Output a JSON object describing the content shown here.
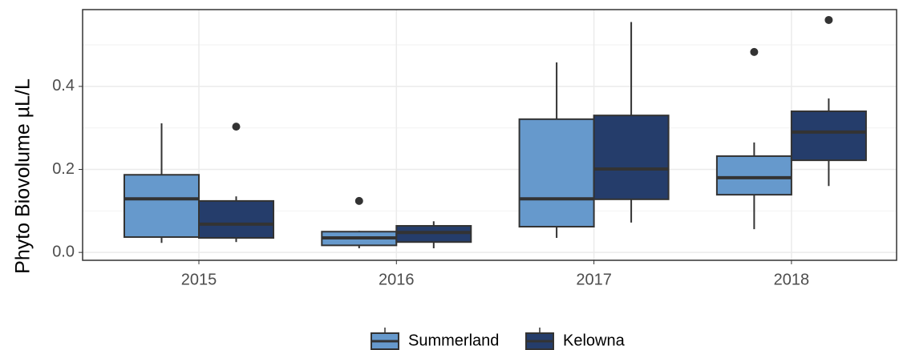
{
  "chart_data": {
    "type": "boxplot",
    "y_label": "Phyto Biovolume   µL/L",
    "categories": [
      "2015",
      "2016",
      "2017",
      "2018"
    ],
    "ylim": [
      -0.019,
      0.585
    ],
    "yticks": [
      {
        "value": 0,
        "label": "0.0"
      },
      0.2,
      0.4
    ],
    "y_minor_ticks": [
      0.1,
      0.3,
      0.5
    ],
    "grid": true,
    "legend_position": "bottom",
    "series": [
      {
        "name": "Summerland",
        "color": "#6699cc",
        "boxes": [
          {
            "low": 0.023,
            "q1": 0.037,
            "median": 0.129,
            "q3": 0.187,
            "high": 0.311,
            "outliers": []
          },
          {
            "low": 0.01,
            "q1": 0.017,
            "median": 0.035,
            "q3": 0.05,
            "high": 0.052,
            "outliers": [
              0.124
            ]
          },
          {
            "low": 0.035,
            "q1": 0.062,
            "median": 0.129,
            "q3": 0.321,
            "high": 0.458,
            "outliers": []
          },
          {
            "low": 0.056,
            "q1": 0.139,
            "median": 0.18,
            "q3": 0.232,
            "high": 0.265,
            "outliers": [
              0.483
            ]
          }
        ]
      },
      {
        "name": "Kelowna",
        "color": "#253d6b",
        "boxes": [
          {
            "low": 0.025,
            "q1": 0.035,
            "median": 0.068,
            "q3": 0.124,
            "high": 0.135,
            "outliers": [
              0.303
            ]
          },
          {
            "low": 0.01,
            "q1": 0.025,
            "median": 0.048,
            "q3": 0.064,
            "high": 0.075,
            "outliers": []
          },
          {
            "low": 0.072,
            "q1": 0.128,
            "median": 0.201,
            "q3": 0.33,
            "high": 0.555,
            "outliers": []
          },
          {
            "low": 0.16,
            "q1": 0.222,
            "median": 0.29,
            "q3": 0.34,
            "high": 0.371,
            "outliers": [
              0.56
            ]
          }
        ]
      }
    ]
  }
}
